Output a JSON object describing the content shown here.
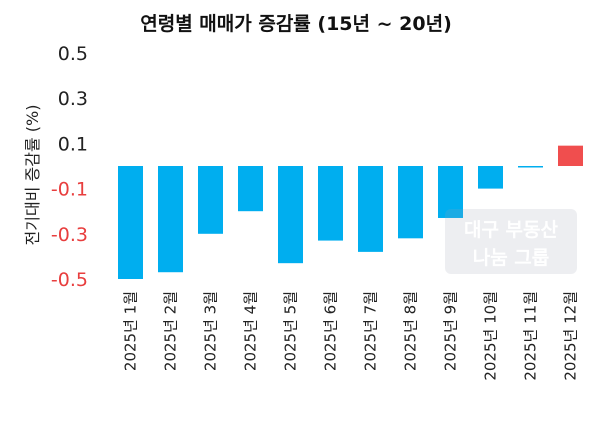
{
  "chart_data": {
    "type": "bar",
    "title": "연령별 매매가 증감률 (15년 ~ 20년)",
    "ylabel": "전기대비 증감률 (%)",
    "xlabel": "",
    "categories": [
      "2025년 1월",
      "2025년 2월",
      "2025년 3월",
      "2025년 4월",
      "2025년 5월",
      "2025년 6월",
      "2025년 7월",
      "2025년 8월",
      "2025년 9월",
      "2025년 10월",
      "2025년 11월",
      "2025년 12월"
    ],
    "values": [
      -0.5,
      -0.47,
      -0.3,
      -0.2,
      -0.43,
      -0.33,
      -0.38,
      -0.32,
      -0.23,
      -0.1,
      -0.005,
      0.09
    ],
    "ylim": [
      -0.5,
      0.5
    ],
    "yticks": [
      "0.5",
      "0.3",
      "0.1",
      "-0.1",
      "-0.3",
      "-0.5"
    ],
    "grid": false,
    "colors": {
      "negative": "#00AEEF",
      "positive": "#F04E4E",
      "positive_tick": "#222222",
      "negative_tick": "#E83E3E"
    }
  },
  "watermark": {
    "line1": "대구 부동산",
    "line2": "나눔 그룹"
  }
}
